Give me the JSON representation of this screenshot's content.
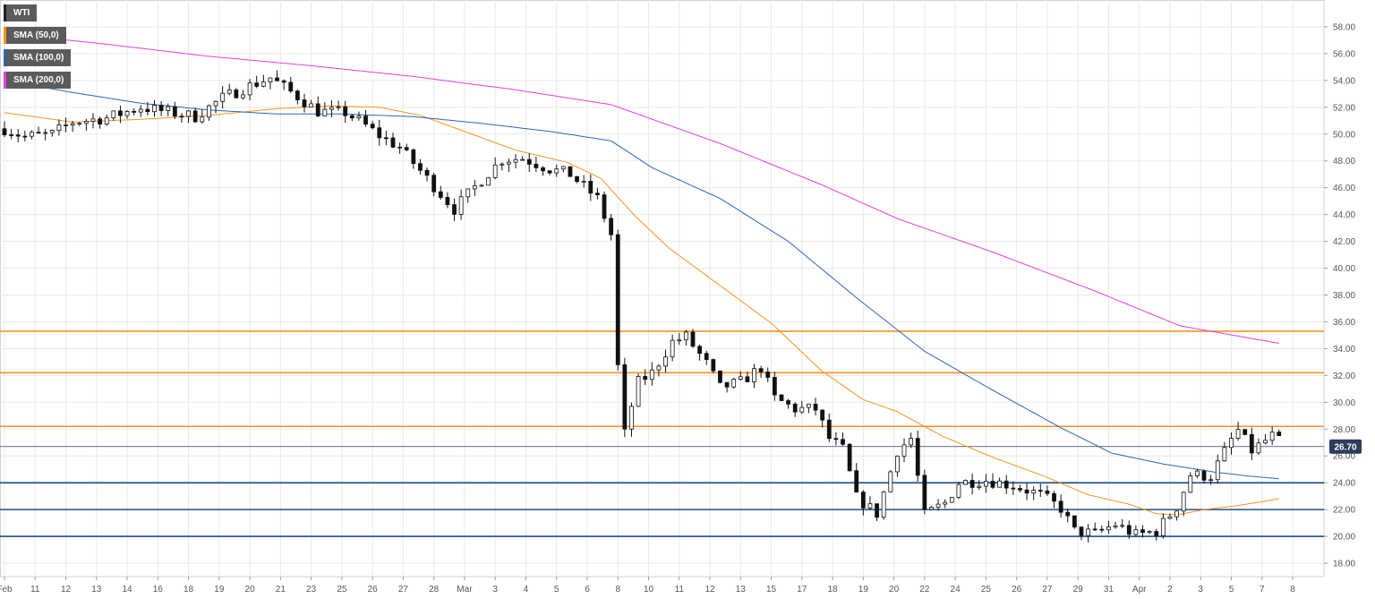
{
  "chart_data": {
    "type": "candlestick",
    "title": "",
    "xlabel": "",
    "ylabel": "",
    "ylim": [
      17,
      60
    ],
    "y_ticks": [
      "18.00",
      "20.00",
      "22.00",
      "24.00",
      "26.00",
      "28.00",
      "30.00",
      "32.00",
      "34.00",
      "36.00",
      "38.00",
      "40.00",
      "42.00",
      "44.00",
      "46.00",
      "48.00",
      "50.00",
      "52.00",
      "54.00",
      "56.00",
      "58.00"
    ],
    "x_ticks": [
      {
        "i": 0,
        "label": "Feb"
      },
      {
        "i": 9,
        "label": "11"
      },
      {
        "i": 18,
        "label": "12"
      },
      {
        "i": 27,
        "label": "13"
      },
      {
        "i": 36,
        "label": "14"
      },
      {
        "i": 45,
        "label": "16"
      },
      {
        "i": 54,
        "label": "18"
      },
      {
        "i": 63,
        "label": "19"
      },
      {
        "i": 72,
        "label": "20"
      },
      {
        "i": 81,
        "label": "21"
      },
      {
        "i": 90,
        "label": "23"
      },
      {
        "i": 99,
        "label": "25"
      },
      {
        "i": 108,
        "label": "26"
      },
      {
        "i": 117,
        "label": "27"
      },
      {
        "i": 126,
        "label": "28"
      },
      {
        "i": 135,
        "label": "Mar"
      },
      {
        "i": 144,
        "label": "3"
      },
      {
        "i": 153,
        "label": "4"
      },
      {
        "i": 162,
        "label": "5"
      },
      {
        "i": 171,
        "label": "6"
      },
      {
        "i": 180,
        "label": "8"
      },
      {
        "i": 189,
        "label": "10"
      },
      {
        "i": 198,
        "label": "11"
      },
      {
        "i": 207,
        "label": "12"
      },
      {
        "i": 216,
        "label": "13"
      },
      {
        "i": 225,
        "label": "15"
      },
      {
        "i": 234,
        "label": "17"
      },
      {
        "i": 243,
        "label": "18"
      },
      {
        "i": 252,
        "label": "19"
      },
      {
        "i": 261,
        "label": "20"
      },
      {
        "i": 270,
        "label": "22"
      },
      {
        "i": 279,
        "label": "24"
      },
      {
        "i": 288,
        "label": "25"
      },
      {
        "i": 297,
        "label": "26"
      },
      {
        "i": 306,
        "label": "27"
      },
      {
        "i": 315,
        "label": "29"
      },
      {
        "i": 324,
        "label": "31"
      },
      {
        "i": 333,
        "label": "Apr"
      },
      {
        "i": 342,
        "label": "2"
      },
      {
        "i": 351,
        "label": "3"
      },
      {
        "i": 360,
        "label": "5"
      },
      {
        "i": 369,
        "label": "7"
      },
      {
        "i": 378,
        "label": "8"
      }
    ],
    "x_count": 378,
    "anchors": [
      [
        0,
        50.4
      ],
      [
        6,
        49.8
      ],
      [
        14,
        50.0
      ],
      [
        20,
        50.9
      ],
      [
        30,
        51.2
      ],
      [
        40,
        52.0
      ],
      [
        56,
        51.3
      ],
      [
        64,
        52.7
      ],
      [
        72,
        53.6
      ],
      [
        78,
        54.2
      ],
      [
        86,
        52.8
      ],
      [
        92,
        51.7
      ],
      [
        100,
        51.6
      ],
      [
        104,
        51.0
      ],
      [
        110,
        49.9
      ],
      [
        116,
        49.0
      ],
      [
        124,
        46.7
      ],
      [
        132,
        44.4
      ],
      [
        136,
        45.5
      ],
      [
        140,
        46.6
      ],
      [
        146,
        48.1
      ],
      [
        152,
        48.2
      ],
      [
        160,
        47.4
      ],
      [
        166,
        47.0
      ],
      [
        174,
        45.2
      ],
      [
        178,
        42.5
      ],
      [
        179,
        41.2
      ],
      [
        180,
        32.8
      ],
      [
        182,
        28.0
      ],
      [
        186,
        31.5
      ],
      [
        190,
        32.2
      ],
      [
        196,
        34.5
      ],
      [
        200,
        34.9
      ],
      [
        206,
        32.9
      ],
      [
        210,
        31.1
      ],
      [
        216,
        31.5
      ],
      [
        222,
        32.6
      ],
      [
        226,
        30.3
      ],
      [
        232,
        29.5
      ],
      [
        238,
        29.5
      ],
      [
        242,
        27.3
      ],
      [
        246,
        26.5
      ],
      [
        250,
        22.9
      ],
      [
        256,
        21.7
      ],
      [
        262,
        26.4
      ],
      [
        266,
        27.3
      ],
      [
        270,
        21.6
      ],
      [
        276,
        22.5
      ],
      [
        280,
        24.0
      ],
      [
        288,
        24.2
      ],
      [
        296,
        23.8
      ],
      [
        304,
        23.1
      ],
      [
        310,
        22.1
      ],
      [
        314,
        20.4
      ],
      [
        320,
        20.2
      ],
      [
        326,
        20.9
      ],
      [
        332,
        20.1
      ],
      [
        338,
        20.4
      ],
      [
        344,
        22.2
      ],
      [
        348,
        24.6
      ],
      [
        354,
        24.5
      ],
      [
        360,
        27.2
      ],
      [
        362,
        27.9
      ],
      [
        366,
        26.4
      ],
      [
        372,
        27.5
      ],
      [
        375,
        26.9
      ]
    ],
    "sma_50": [
      [
        0,
        51.6
      ],
      [
        20,
        50.9
      ],
      [
        40,
        51.1
      ],
      [
        60,
        51.4
      ],
      [
        80,
        51.9
      ],
      [
        96,
        52.1
      ],
      [
        110,
        52.0
      ],
      [
        122,
        51.4
      ],
      [
        135,
        50.2
      ],
      [
        150,
        48.8
      ],
      [
        165,
        47.9
      ],
      [
        175,
        46.7
      ],
      [
        185,
        43.9
      ],
      [
        195,
        41.5
      ],
      [
        210,
        38.7
      ],
      [
        225,
        35.9
      ],
      [
        240,
        32.3
      ],
      [
        252,
        30.2
      ],
      [
        262,
        29.3
      ],
      [
        275,
        27.5
      ],
      [
        290,
        25.9
      ],
      [
        305,
        24.5
      ],
      [
        318,
        23.1
      ],
      [
        330,
        22.4
      ],
      [
        338,
        21.7
      ],
      [
        344,
        21.6
      ],
      [
        352,
        22.0
      ],
      [
        362,
        22.3
      ],
      [
        374,
        22.8
      ]
    ],
    "sma_100": [
      [
        0,
        54.0
      ],
      [
        20,
        53.1
      ],
      [
        40,
        52.3
      ],
      [
        60,
        51.8
      ],
      [
        80,
        51.5
      ],
      [
        100,
        51.5
      ],
      [
        120,
        51.3
      ],
      [
        140,
        50.8
      ],
      [
        160,
        50.2
      ],
      [
        178,
        49.5
      ],
      [
        190,
        47.5
      ],
      [
        210,
        45.2
      ],
      [
        230,
        42.0
      ],
      [
        250,
        37.8
      ],
      [
        270,
        33.8
      ],
      [
        290,
        30.9
      ],
      [
        310,
        28.1
      ],
      [
        325,
        26.2
      ],
      [
        340,
        25.4
      ],
      [
        355,
        24.8
      ],
      [
        365,
        24.5
      ],
      [
        374,
        24.3
      ]
    ],
    "sma_200": [
      [
        0,
        57.5
      ],
      [
        30,
        56.7
      ],
      [
        60,
        55.8
      ],
      [
        90,
        55.1
      ],
      [
        120,
        54.3
      ],
      [
        150,
        53.3
      ],
      [
        178,
        52.2
      ],
      [
        210,
        49.3
      ],
      [
        240,
        46.2
      ],
      [
        262,
        43.7
      ],
      [
        290,
        41.2
      ],
      [
        320,
        38.3
      ],
      [
        345,
        35.7
      ],
      [
        374,
        34.4
      ]
    ],
    "levels": [
      {
        "value": 35.3,
        "color": "#f7931e"
      },
      {
        "value": 32.2,
        "color": "#f7931e"
      },
      {
        "value": 28.2,
        "color": "#f7931e"
      },
      {
        "value": 24.0,
        "color": "#1f4e8c"
      },
      {
        "value": 22.0,
        "color": "#1f4e8c"
      },
      {
        "value": 20.0,
        "color": "#1f4e8c"
      }
    ],
    "current_price": 26.7,
    "current_price_label": "26.70",
    "legend": [
      {
        "label": "WTI",
        "color": "#222222"
      },
      {
        "label": "SMA (50,0)",
        "color": "#f7931e"
      },
      {
        "label": "SMA (100,0)",
        "color": "#2e63b8"
      },
      {
        "label": "SMA (200,0)",
        "color": "#e040e0"
      }
    ],
    "colors": {
      "sma_50": "#f7931e",
      "sma_100": "#2e63b8",
      "sma_200": "#e040e0",
      "price_line": "#2d3e5a",
      "price_tag_bg": "#2d3e5a",
      "grid": "#e9e9e9",
      "axis_text": "#555555"
    },
    "grid": true,
    "legend_placement": "top-left"
  }
}
